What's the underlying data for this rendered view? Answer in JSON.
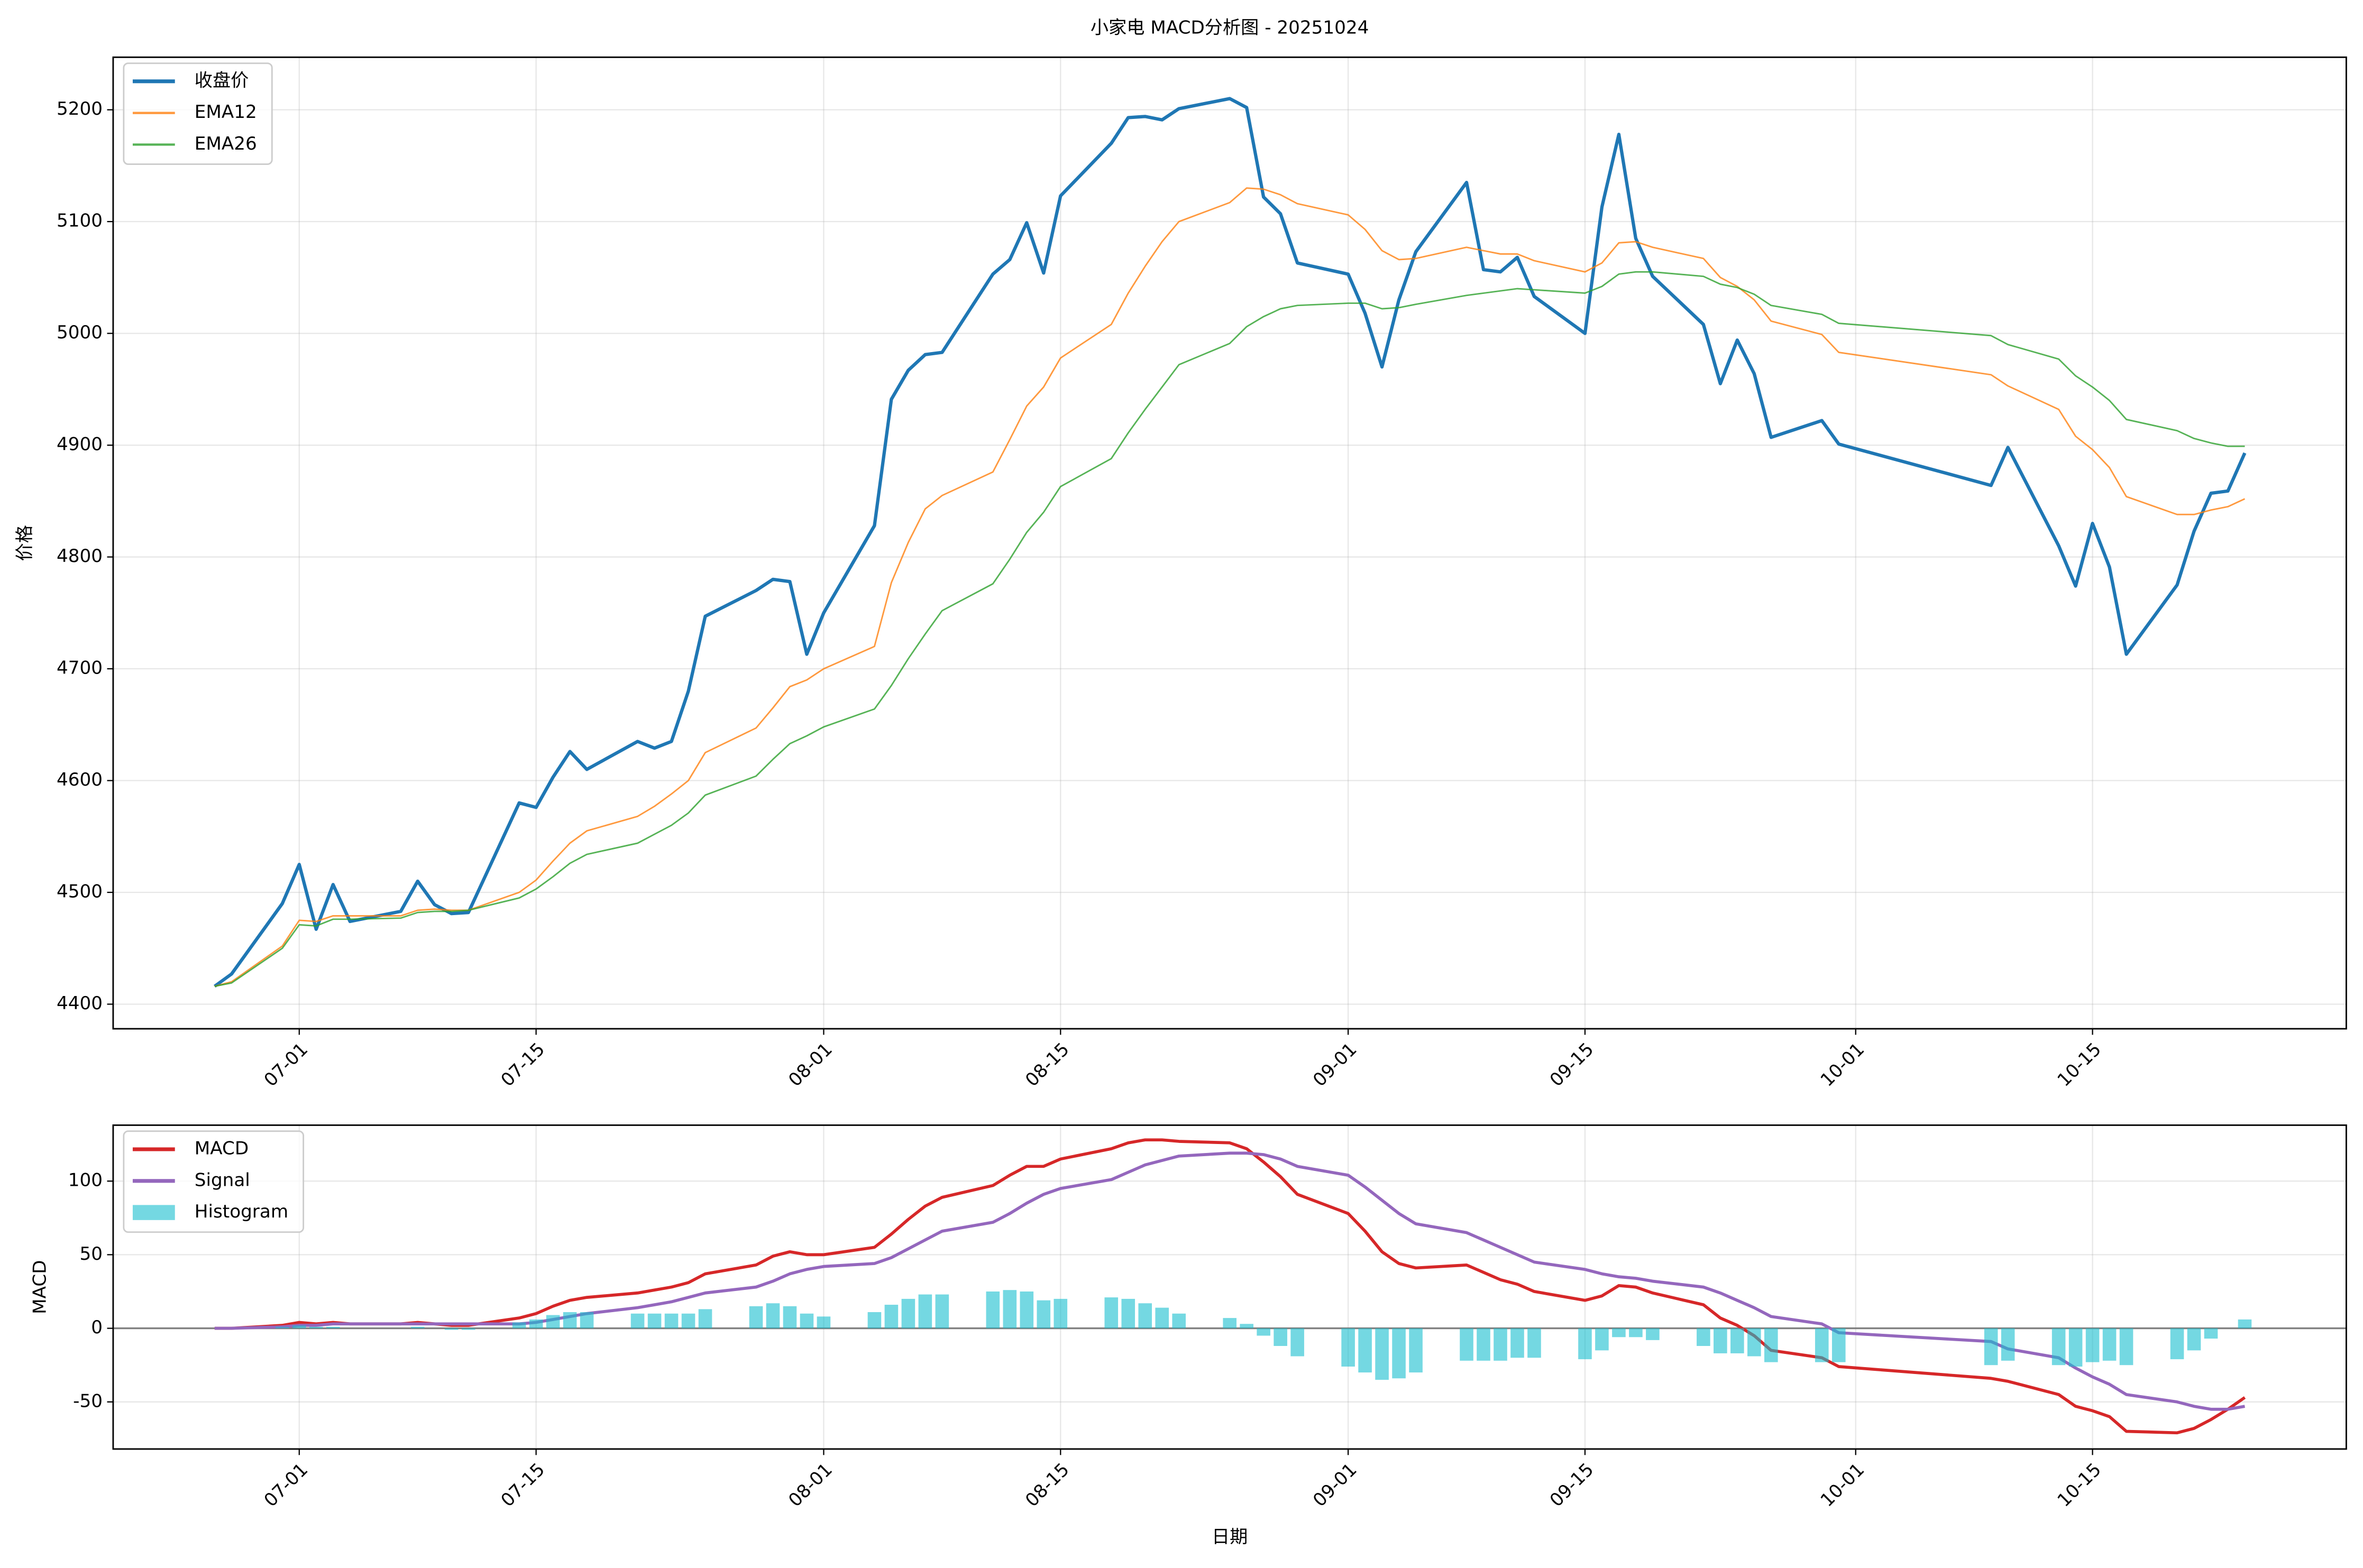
{
  "chart_data": [
    {
      "type": "line",
      "title": "小家电 MACD分析图 - 20251024",
      "ylabel": "价格",
      "x": [
        "06-26",
        "06-27",
        "06-30",
        "07-01",
        "07-02",
        "07-03",
        "07-04",
        "07-07",
        "07-08",
        "07-09",
        "07-10",
        "07-11",
        "07-14",
        "07-15",
        "07-16",
        "07-17",
        "07-18",
        "07-21",
        "07-22",
        "07-23",
        "07-24",
        "07-25",
        "07-28",
        "07-29",
        "07-30",
        "07-31",
        "08-01",
        "08-04",
        "08-05",
        "08-06",
        "08-07",
        "08-08",
        "08-11",
        "08-12",
        "08-13",
        "08-14",
        "08-15",
        "08-18",
        "08-19",
        "08-20",
        "08-21",
        "08-22",
        "08-25",
        "08-26",
        "08-27",
        "08-28",
        "08-29",
        "09-01",
        "09-02",
        "09-03",
        "09-04",
        "09-05",
        "09-08",
        "09-09",
        "09-10",
        "09-11",
        "09-12",
        "09-15",
        "09-16",
        "09-17",
        "09-18",
        "09-19",
        "09-22",
        "09-23",
        "09-24",
        "09-25",
        "09-26",
        "09-29",
        "09-30",
        "10-09",
        "10-10",
        "10-13",
        "10-14",
        "10-15",
        "10-16",
        "10-17",
        "10-20",
        "10-21",
        "10-22",
        "10-23",
        "10-24"
      ],
      "series": [
        {
          "name": "收盘价",
          "color": "#1f77b4",
          "values": [
            4416,
            4427,
            4490,
            4525,
            4467,
            4507,
            4474,
            4483,
            4510,
            4489,
            4481,
            4482,
            4580,
            4576,
            4603,
            4626,
            4610,
            4635,
            4629,
            4635,
            4680,
            4747,
            4770,
            4780,
            4778,
            4713,
            4750,
            4828,
            4941,
            4967,
            4981,
            4983,
            5053,
            5066,
            5099,
            5054,
            5123,
            5170,
            5193,
            5194,
            5191,
            5201,
            5210,
            5202,
            5122,
            5107,
            5063,
            5053,
            5018,
            4970,
            5030,
            5073,
            5135,
            5057,
            5055,
            5068,
            5033,
            5000,
            5113,
            5178,
            5085,
            5051,
            5008,
            4955,
            4994,
            4964,
            4907,
            4922,
            4901,
            4864,
            4898,
            4810,
            4774,
            4830,
            4791,
            4713,
            4775,
            4823,
            4857,
            4859,
            4893
          ]
        },
        {
          "name": "EMA12",
          "color": "#ff7f0e",
          "values": [
            4416,
            4420,
            4452,
            4475,
            4474,
            4479,
            4479,
            4479,
            4484,
            4485,
            4484,
            4484,
            4500,
            4511,
            4528,
            4544,
            4555,
            4568,
            4577,
            4588,
            4600,
            4625,
            4647,
            4665,
            4684,
            4690,
            4700,
            4720,
            4777,
            4813,
            4843,
            4855,
            4876,
            4905,
            4935,
            4952,
            4978,
            5008,
            5036,
            5060,
            5082,
            5100,
            5117,
            5130,
            5129,
            5124,
            5116,
            5106,
            5093,
            5074,
            5066,
            5067,
            5077,
            5074,
            5071,
            5071,
            5065,
            5055,
            5063,
            5081,
            5082,
            5077,
            5067,
            5050,
            5042,
            5030,
            5011,
            4999,
            4983,
            4963,
            4953,
            4932,
            4908,
            4896,
            4880,
            4854,
            4838,
            4838,
            4842,
            4845,
            4852
          ]
        },
        {
          "name": "EMA26",
          "color": "#2ca02c",
          "values": [
            4416,
            4419,
            4450,
            4471,
            4470,
            4476,
            4476,
            4477,
            4482,
            4483,
            4483,
            4484,
            4495,
            4503,
            4514,
            4526,
            4534,
            4544,
            4552,
            4560,
            4571,
            4587,
            4604,
            4619,
            4633,
            4640,
            4648,
            4664,
            4685,
            4709,
            4731,
            4752,
            4776,
            4798,
            4822,
            4840,
            4863,
            4888,
            4911,
            4932,
            4952,
            4972,
            4991,
            5006,
            5015,
            5022,
            5025,
            5027,
            5027,
            5022,
            5023,
            5026,
            5034,
            5036,
            5038,
            5040,
            5039,
            5036,
            5042,
            5053,
            5055,
            5055,
            5051,
            5044,
            5041,
            5035,
            5025,
            5017,
            5009,
            4998,
            4990,
            4977,
            4962,
            4952,
            4940,
            4923,
            4913,
            4906,
            4902,
            4899,
            4899
          ]
        }
      ],
      "xlim": [
        "06-20",
        "10-30"
      ],
      "xticks": [
        "07-01",
        "07-15",
        "08-01",
        "08-15",
        "09-01",
        "09-15",
        "10-01",
        "10-15"
      ],
      "ylim": [
        4378,
        5247
      ],
      "yticks": [
        4400,
        4500,
        4600,
        4700,
        4800,
        4900,
        5000,
        5100,
        5200
      ],
      "grid": true,
      "legend": "upper left"
    },
    {
      "type": "line",
      "xlabel": "日期",
      "ylabel": "MACD",
      "x": [
        "06-26",
        "06-27",
        "06-30",
        "07-01",
        "07-02",
        "07-03",
        "07-04",
        "07-07",
        "07-08",
        "07-09",
        "07-10",
        "07-11",
        "07-14",
        "07-15",
        "07-16",
        "07-17",
        "07-18",
        "07-21",
        "07-22",
        "07-23",
        "07-24",
        "07-25",
        "07-28",
        "07-29",
        "07-30",
        "07-31",
        "08-01",
        "08-04",
        "08-05",
        "08-06",
        "08-07",
        "08-08",
        "08-11",
        "08-12",
        "08-13",
        "08-14",
        "08-15",
        "08-18",
        "08-19",
        "08-20",
        "08-21",
        "08-22",
        "08-25",
        "08-26",
        "08-27",
        "08-28",
        "08-29",
        "09-01",
        "09-02",
        "09-03",
        "09-04",
        "09-05",
        "09-08",
        "09-09",
        "09-10",
        "09-11",
        "09-12",
        "09-15",
        "09-16",
        "09-17",
        "09-18",
        "09-19",
        "09-22",
        "09-23",
        "09-24",
        "09-25",
        "09-26",
        "09-29",
        "09-30",
        "10-09",
        "10-10",
        "10-13",
        "10-14",
        "10-15",
        "10-16",
        "10-17",
        "10-20",
        "10-21",
        "10-22",
        "10-23",
        "10-24"
      ],
      "series": [
        {
          "name": "MACD",
          "color": "#d62728",
          "values": [
            0,
            0,
            2,
            4,
            3,
            4,
            3,
            3,
            4,
            3,
            2,
            2,
            7,
            10,
            15,
            19,
            21,
            24,
            26,
            28,
            31,
            37,
            43,
            49,
            52,
            50,
            50,
            55,
            64,
            74,
            83,
            89,
            97,
            104,
            110,
            110,
            115,
            122,
            126,
            128,
            128,
            127,
            126,
            122,
            113,
            103,
            91,
            78,
            66,
            52,
            44,
            41,
            43,
            38,
            33,
            30,
            25,
            19,
            22,
            29,
            28,
            24,
            16,
            7,
            2,
            -5,
            -15,
            -20,
            -26,
            -34,
            -36,
            -45,
            -53,
            -56,
            -60,
            -70,
            -71,
            -68,
            -62,
            -55,
            -47
          ]
        },
        {
          "name": "Signal",
          "color": "#9467bd",
          "values": [
            0,
            0,
            1,
            2,
            2,
            3,
            3,
            3,
            3,
            3,
            3,
            3,
            3,
            4,
            6,
            8,
            10,
            14,
            16,
            18,
            21,
            24,
            28,
            32,
            37,
            40,
            42,
            44,
            48,
            54,
            60,
            66,
            72,
            78,
            85,
            91,
            95,
            101,
            106,
            111,
            114,
            117,
            119,
            119,
            118,
            115,
            110,
            104,
            96,
            87,
            78,
            71,
            65,
            60,
            55,
            50,
            45,
            40,
            37,
            35,
            34,
            32,
            28,
            24,
            19,
            14,
            8,
            3,
            -3,
            -9,
            -14,
            -20,
            -27,
            -33,
            -38,
            -45,
            -50,
            -53,
            -55,
            -55,
            -53
          ]
        },
        {
          "name": "Histogram",
          "type": "bar",
          "color": "#17becf",
          "values": [
            0,
            0,
            1,
            2,
            1,
            1,
            0,
            0,
            1,
            0,
            -1,
            -1,
            4,
            6,
            9,
            11,
            11,
            10,
            10,
            10,
            10,
            13,
            15,
            17,
            15,
            10,
            8,
            11,
            16,
            20,
            23,
            23,
            25,
            26,
            25,
            19,
            20,
            21,
            20,
            17,
            14,
            10,
            7,
            3,
            -5,
            -12,
            -19,
            -26,
            -30,
            -35,
            -34,
            -30,
            -22,
            -22,
            -22,
            -20,
            -20,
            -21,
            -15,
            -6,
            -6,
            -8,
            -12,
            -17,
            -17,
            -19,
            -23,
            -23,
            -23,
            -25,
            -22,
            -25,
            -26,
            -23,
            -22,
            -25,
            -21,
            -15,
            -7,
            0,
            6
          ]
        }
      ],
      "xlim": [
        "06-20",
        "10-30"
      ],
      "xticks": [
        "07-01",
        "07-15",
        "08-01",
        "08-15",
        "09-01",
        "09-15",
        "10-01",
        "10-15"
      ],
      "ylim": [
        -82,
        138
      ],
      "yticks": [
        -50,
        0,
        50,
        100
      ],
      "grid": true,
      "zero_line": true,
      "legend": "upper left"
    }
  ]
}
